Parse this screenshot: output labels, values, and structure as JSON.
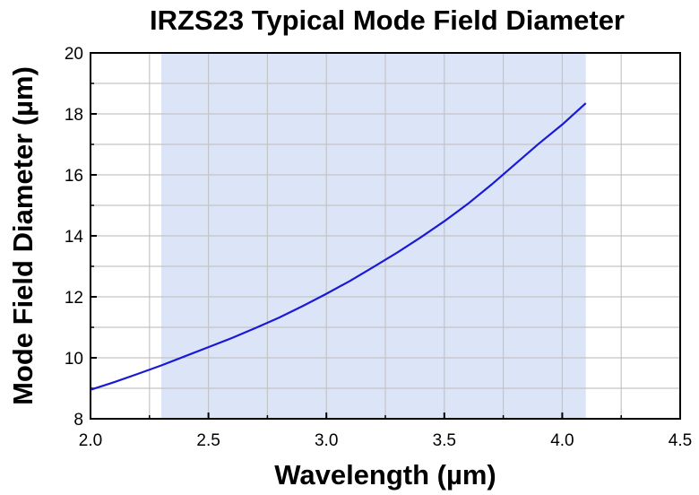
{
  "chart_data": {
    "type": "line",
    "title": "IRZS23 Typical Mode Field Diameter",
    "xlabel": "Wavelength (µm)",
    "ylabel": "Mode Field Diameter (µm)",
    "xlim": [
      2.0,
      4.5
    ],
    "ylim": [
      8,
      20
    ],
    "x_ticks": [
      "2.0",
      "2.5",
      "3.0",
      "3.5",
      "4.0",
      "4.5"
    ],
    "y_ticks": [
      "8",
      "10",
      "12",
      "14",
      "16",
      "18",
      "20"
    ],
    "grid": true,
    "shaded_region": {
      "x": [
        2.3,
        4.1
      ],
      "color": "#dce5f7"
    },
    "series": [
      {
        "color": "#1a1ad6",
        "x": [
          2.0,
          2.1,
          2.2,
          2.3,
          2.4,
          2.5,
          2.6,
          2.7,
          2.8,
          2.9,
          3.0,
          3.1,
          3.2,
          3.3,
          3.4,
          3.5,
          3.6,
          3.7,
          3.8,
          3.9,
          4.0,
          4.1
        ],
        "y": [
          8.95,
          9.2,
          9.47,
          9.75,
          10.05,
          10.35,
          10.65,
          10.98,
          11.32,
          11.7,
          12.1,
          12.52,
          12.98,
          13.45,
          13.95,
          14.48,
          15.05,
          15.68,
          16.35,
          17.02,
          17.65,
          18.35
        ]
      }
    ]
  }
}
